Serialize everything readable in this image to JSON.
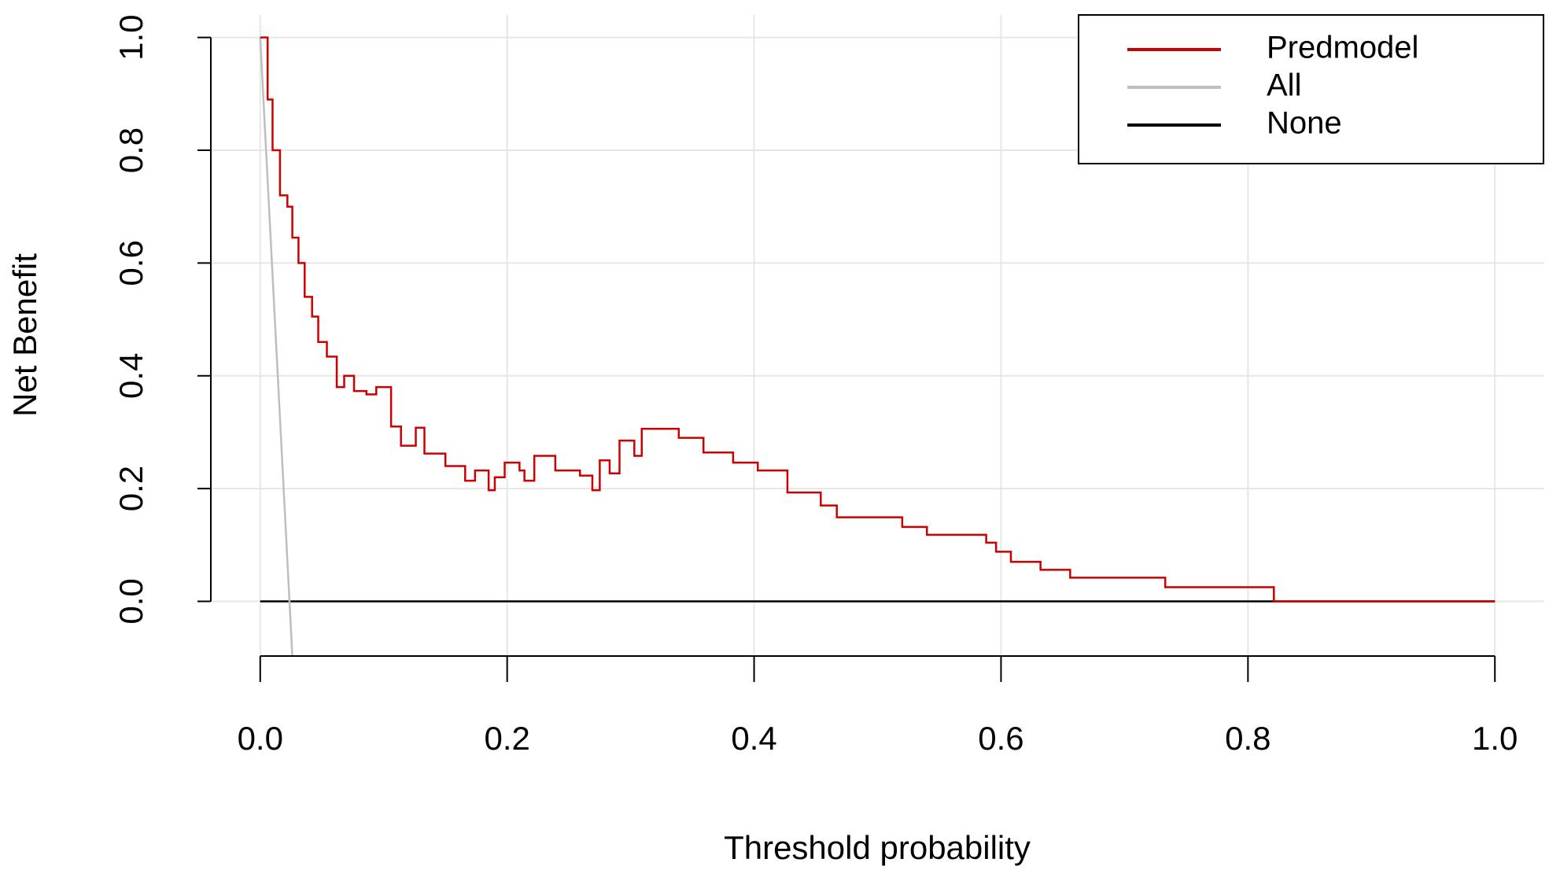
{
  "chart_data": {
    "type": "line",
    "x_label": "Threshold probability",
    "y_label": "Net Benefit",
    "xlim": [
      -0.04,
      1.04
    ],
    "ylim": [
      -0.097,
      1.04
    ],
    "xticks": [
      {
        "value": 0,
        "label": "0.0"
      },
      0.2,
      0.4,
      0.6,
      0.8,
      {
        "value": 1,
        "label": "1.0"
      }
    ],
    "yticks": [
      {
        "value": 0,
        "label": "0.0"
      },
      0.2,
      0.4,
      0.6,
      0.8,
      {
        "value": 1,
        "label": "1.0"
      }
    ],
    "grid": true,
    "legend": "top-right",
    "step": true,
    "series": [
      {
        "name": "Predmodel",
        "color": "#cc0000",
        "x": [
          0,
          0.006,
          0.01,
          0.016,
          0.022,
          0.026,
          0.031,
          0.036,
          0.042,
          0.047,
          0.054,
          0.062,
          0.068,
          0.076,
          0.086,
          0.094,
          0.106,
          0.114,
          0.126,
          0.133,
          0.15,
          0.166,
          0.174,
          0.185,
          0.19,
          0.198,
          0.21,
          0.214,
          0.222,
          0.239,
          0.259,
          0.269,
          0.275,
          0.283,
          0.291,
          0.303,
          0.309,
          0.339,
          0.359,
          0.383,
          0.403,
          0.427,
          0.454,
          0.467,
          0.52,
          0.54,
          0.588,
          0.596,
          0.608,
          0.632,
          0.656,
          0.733,
          0.821,
          1
        ],
        "values": [
          1,
          0.89,
          0.8,
          0.72,
          0.7,
          0.645,
          0.6,
          0.54,
          0.505,
          0.46,
          0.434,
          0.38,
          0.4,
          0.373,
          0.367,
          0.38,
          0.31,
          0.276,
          0.308,
          0.262,
          0.24,
          0.214,
          0.232,
          0.197,
          0.22,
          0.246,
          0.232,
          0.214,
          0.258,
          0.232,
          0.223,
          0.197,
          0.25,
          0.227,
          0.285,
          0.258,
          0.306,
          0.29,
          0.264,
          0.246,
          0.232,
          0.193,
          0.17,
          0.149,
          0.132,
          0.118,
          0.104,
          0.088,
          0.07,
          0.056,
          0.042,
          0.025,
          0,
          0
        ]
      },
      {
        "name": "All",
        "color": "#bebebe",
        "x": [
          0,
          0.026
        ],
        "values": [
          1,
          -0.097
        ]
      },
      {
        "name": "None",
        "color": "#000000",
        "x": [
          0,
          1
        ],
        "values": [
          0,
          0
        ]
      }
    ]
  }
}
